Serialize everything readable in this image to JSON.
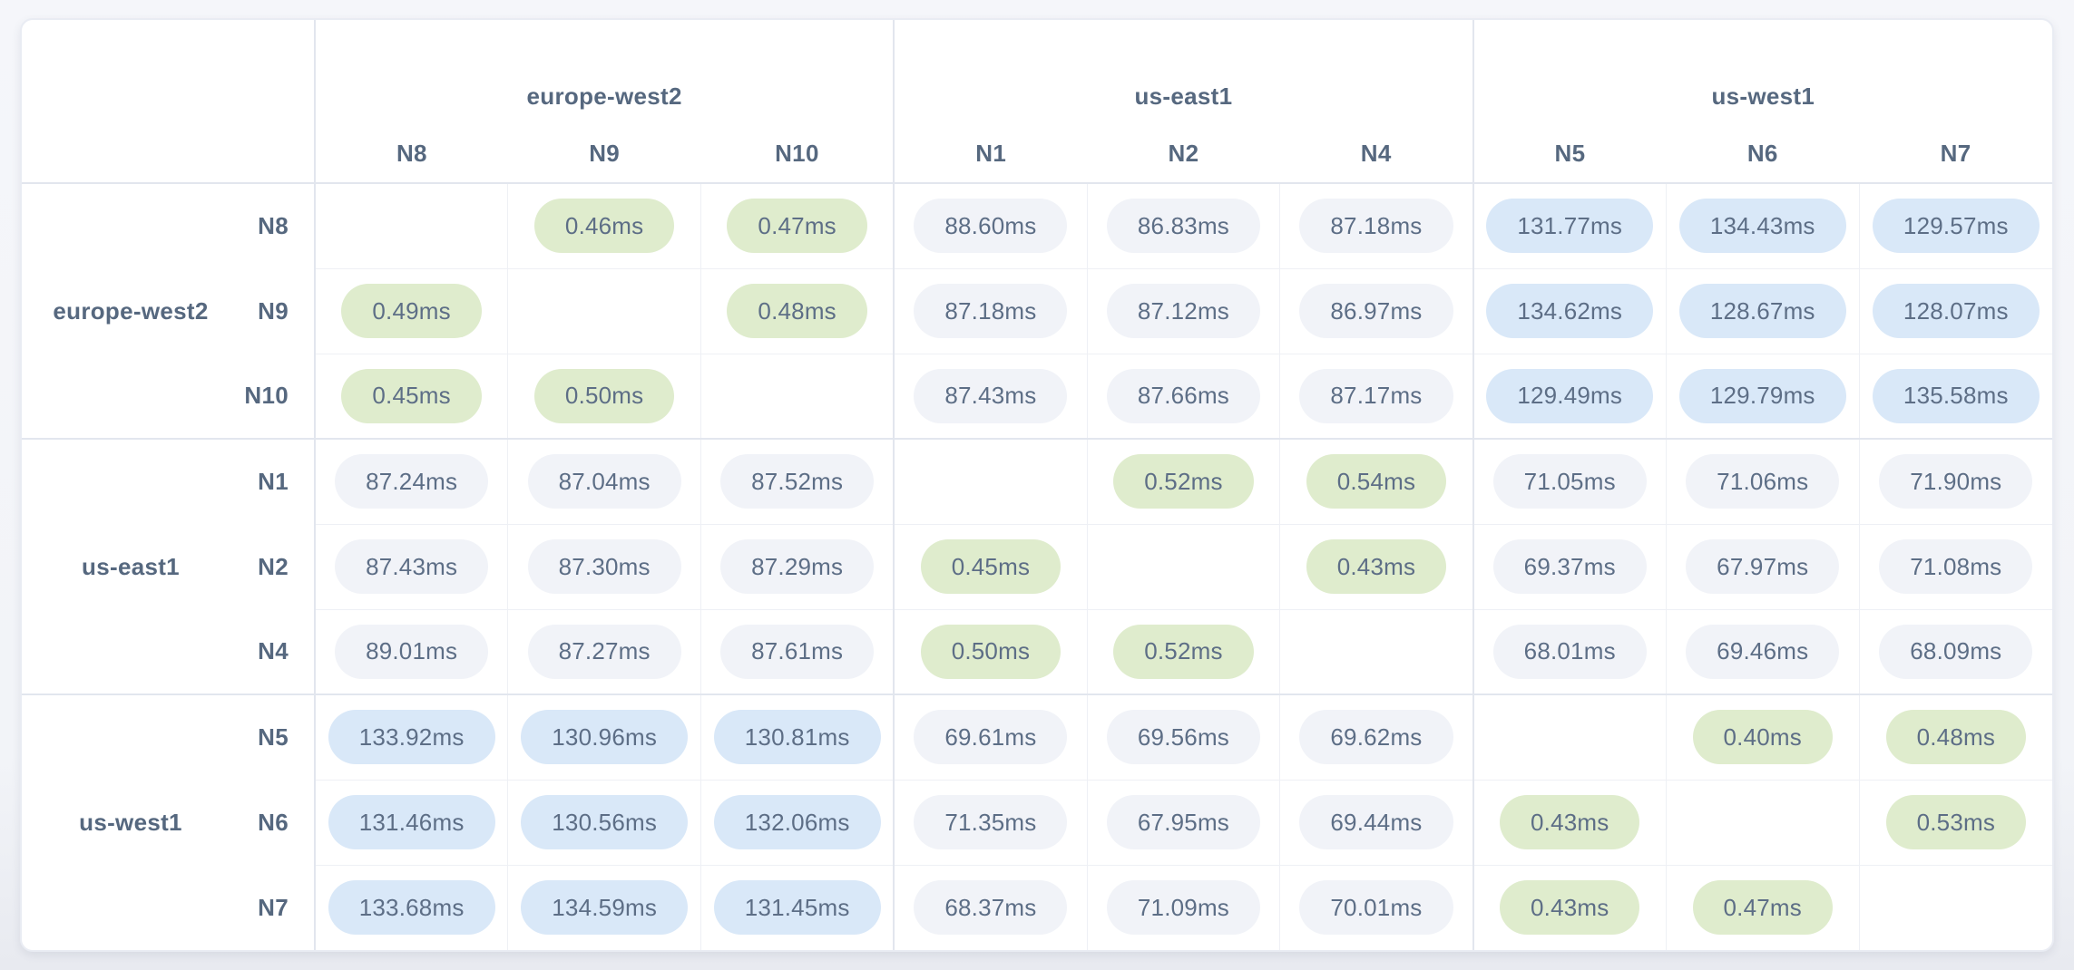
{
  "chart_data": {
    "type": "heatmap",
    "unit": "ms",
    "regions": [
      {
        "name": "europe-west2",
        "nodes": [
          "N8",
          "N9",
          "N10"
        ]
      },
      {
        "name": "us-east1",
        "nodes": [
          "N1",
          "N2",
          "N4"
        ]
      },
      {
        "name": "us-west1",
        "nodes": [
          "N5",
          "N6",
          "N7"
        ]
      }
    ],
    "columns": [
      "N8",
      "N9",
      "N10",
      "N1",
      "N2",
      "N4",
      "N5",
      "N6",
      "N7"
    ],
    "rows": [
      {
        "region": "europe-west2",
        "node": "N8",
        "values": [
          null,
          0.46,
          0.47,
          88.6,
          86.83,
          87.18,
          131.77,
          134.43,
          129.57
        ]
      },
      {
        "region": "europe-west2",
        "node": "N9",
        "values": [
          0.49,
          null,
          0.48,
          87.18,
          87.12,
          86.97,
          134.62,
          128.67,
          128.07
        ]
      },
      {
        "region": "europe-west2",
        "node": "N10",
        "values": [
          0.45,
          0.5,
          null,
          87.43,
          87.66,
          87.17,
          129.49,
          129.79,
          135.58
        ]
      },
      {
        "region": "us-east1",
        "node": "N1",
        "values": [
          87.24,
          87.04,
          87.52,
          null,
          0.52,
          0.54,
          71.05,
          71.06,
          71.9
        ]
      },
      {
        "region": "us-east1",
        "node": "N2",
        "values": [
          87.43,
          87.3,
          87.29,
          0.45,
          null,
          0.43,
          69.37,
          67.97,
          71.08
        ]
      },
      {
        "region": "us-east1",
        "node": "N4",
        "values": [
          89.01,
          87.27,
          87.61,
          0.5,
          0.52,
          null,
          68.01,
          69.46,
          68.09
        ]
      },
      {
        "region": "us-west1",
        "node": "N5",
        "values": [
          133.92,
          130.96,
          130.81,
          69.61,
          69.56,
          69.62,
          null,
          0.4,
          0.48
        ]
      },
      {
        "region": "us-west1",
        "node": "N6",
        "values": [
          131.46,
          130.56,
          132.06,
          71.35,
          67.95,
          69.44,
          0.43,
          null,
          0.53
        ]
      },
      {
        "region": "us-west1",
        "node": "N7",
        "values": [
          133.68,
          134.59,
          131.45,
          68.37,
          71.09,
          70.01,
          0.43,
          0.47,
          null
        ]
      }
    ],
    "colors": {
      "intra_region": "#dfeccd",
      "inter_region_near": "#f1f3f8",
      "inter_region_far": "#d9e8f8"
    },
    "value_thresholds": {
      "low_below": 1,
      "high_above": 100
    }
  }
}
